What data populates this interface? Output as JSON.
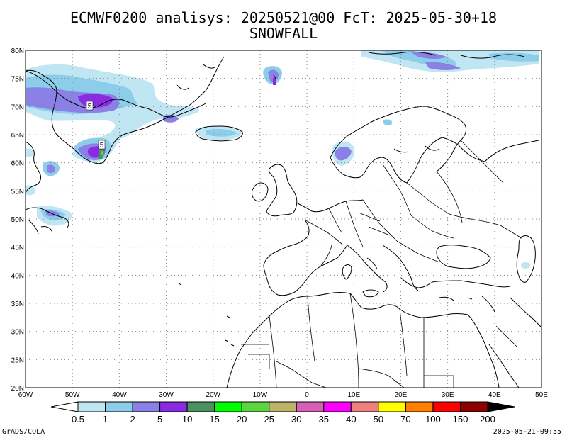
{
  "header": {
    "title": "ECMWF0200 analisys: 20250521@00 FcT: 2025-05-30+18",
    "subtitle": "SNOWFALL"
  },
  "map": {
    "lon_min": -60,
    "lon_max": 50,
    "lat_min": 20,
    "lat_max": 80,
    "lon_ticks": [
      "60W",
      "50W",
      "40W",
      "30W",
      "20W",
      "10W",
      "0",
      "10E",
      "20E",
      "30E",
      "40E",
      "50E"
    ],
    "lat_ticks": [
      "80N",
      "75N",
      "70N",
      "65N",
      "60N",
      "55N",
      "50N",
      "45N",
      "40N",
      "35N",
      "30N",
      "25N",
      "20N"
    ],
    "contour_labels": [
      "5",
      "5"
    ]
  },
  "legend": {
    "labels": [
      "0.5",
      "1",
      "2",
      "5",
      "10",
      "15",
      "20",
      "25",
      "30",
      "35",
      "40",
      "50",
      "70",
      "100",
      "150",
      "200"
    ],
    "colors": [
      "#bfe6f2",
      "#8ccdea",
      "#8a80e6",
      "#8a2be2",
      "#4a9060",
      "#00ff00",
      "#5cd640",
      "#bdb46a",
      "#d85fb8",
      "#ff00ff",
      "#f08080",
      "#ffff00",
      "#ff8000",
      "#ff0000",
      "#8b0000",
      "#000000"
    ]
  },
  "footer": {
    "left": "GrADS/COLA",
    "right": "2025-05-21-09:55"
  }
}
